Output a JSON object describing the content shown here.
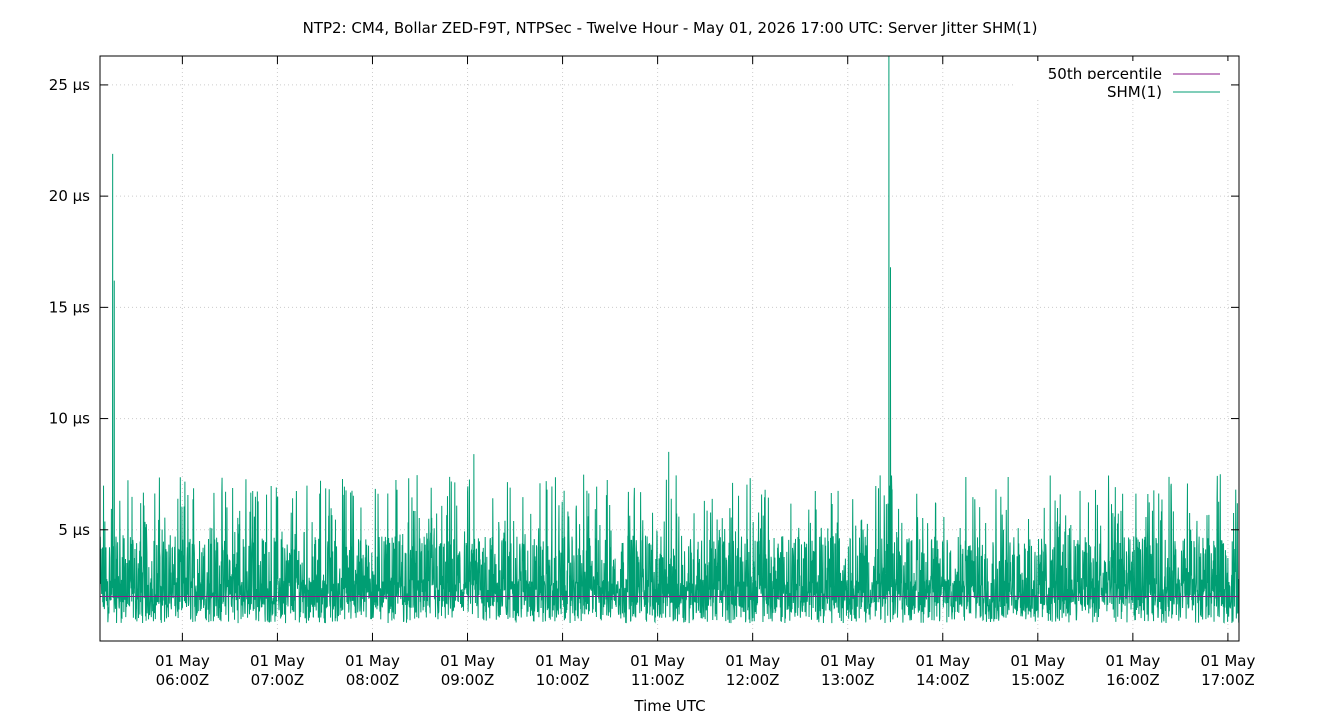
{
  "chart_data": {
    "type": "line",
    "title": "NTP2: CM4, Bollar ZED-F9T, NTPSec - Twelve Hour - May 01, 2026 17:00 UTC: Server Jitter SHM(1)",
    "xlabel": "Time UTC",
    "ylabel": "",
    "ylim": [
      0,
      26.3
    ],
    "xlim": [
      "2026-05-01T05:08Z",
      "2026-05-01T17:07Z"
    ],
    "grid": true,
    "legend_position": "top-right",
    "y_ticks": [
      {
        "value": 5,
        "label": "5 µs"
      },
      {
        "value": 10,
        "label": "10 µs"
      },
      {
        "value": 15,
        "label": "15 µs"
      },
      {
        "value": 20,
        "label": "20 µs"
      },
      {
        "value": 25,
        "label": "25 µs"
      }
    ],
    "x_ticks": [
      {
        "value": "2026-05-01T06:00Z",
        "line1": "01 May",
        "line2": "06:00Z"
      },
      {
        "value": "2026-05-01T07:00Z",
        "line1": "01 May",
        "line2": "07:00Z"
      },
      {
        "value": "2026-05-01T08:00Z",
        "line1": "01 May",
        "line2": "08:00Z"
      },
      {
        "value": "2026-05-01T09:00Z",
        "line1": "01 May",
        "line2": "09:00Z"
      },
      {
        "value": "2026-05-01T10:00Z",
        "line1": "01 May",
        "line2": "10:00Z"
      },
      {
        "value": "2026-05-01T11:00Z",
        "line1": "01 May",
        "line2": "11:00Z"
      },
      {
        "value": "2026-05-01T12:00Z",
        "line1": "01 May",
        "line2": "12:00Z"
      },
      {
        "value": "2026-05-01T13:00Z",
        "line1": "01 May",
        "line2": "13:00Z"
      },
      {
        "value": "2026-05-01T14:00Z",
        "line1": "01 May",
        "line2": "14:00Z"
      },
      {
        "value": "2026-05-01T15:00Z",
        "line1": "01 May",
        "line2": "15:00Z"
      },
      {
        "value": "2026-05-01T16:00Z",
        "line1": "01 May",
        "line2": "16:00Z"
      },
      {
        "value": "2026-05-01T17:00Z",
        "line1": "01 May",
        "line2": "17:00Z"
      }
    ],
    "series": [
      {
        "name": "50th percentile",
        "color": "#8b1a8b",
        "values": [
          2.0
        ]
      },
      {
        "name": "SHM(1)",
        "color": "#009e73",
        "typical_range": [
          0.5,
          7.5
        ],
        "spikes": [
          {
            "x": "2026-05-01T05:16Z",
            "y": 21.9
          },
          {
            "x": "2026-05-01T05:17Z",
            "y": 16.2
          },
          {
            "x": "2026-05-01T13:26Z",
            "y": 26.3
          },
          {
            "x": "2026-05-01T13:27Z",
            "y": 16.8
          },
          {
            "x": "2026-05-01T13:27Z",
            "y": 13.2
          },
          {
            "x": "2026-05-01T11:07Z",
            "y": 8.5
          },
          {
            "x": "2026-05-01T09:04Z",
            "y": 8.4
          }
        ]
      }
    ]
  }
}
